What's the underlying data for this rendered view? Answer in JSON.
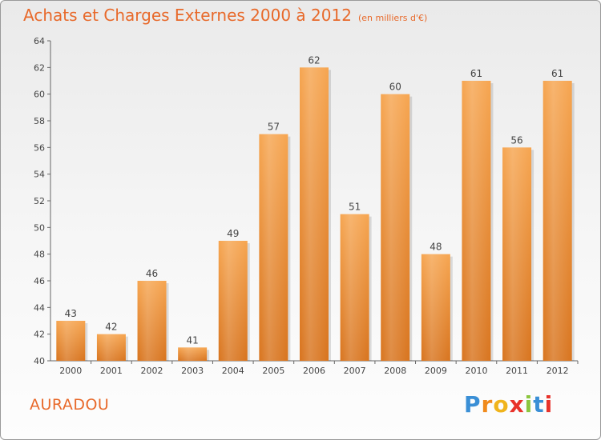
{
  "title": "Achats et Charges Externes 2000 à 2012",
  "unit": "(en milliers d'€)",
  "commune": "AURADOU",
  "logo": {
    "letters": [
      "P",
      "r",
      "o",
      "x",
      "i",
      "t",
      "i"
    ],
    "colors": [
      "#3a8fd6",
      "#f08a1c",
      "#f0b41c",
      "#e8322a",
      "#8cc63f",
      "#3a8fd6",
      "#e8322a"
    ]
  },
  "chart_data": {
    "type": "bar",
    "categories": [
      "2000",
      "2001",
      "2002",
      "2003",
      "2004",
      "2005",
      "2006",
      "2007",
      "2008",
      "2009",
      "2010",
      "2011",
      "2012"
    ],
    "values": [
      43,
      42,
      46,
      41,
      49,
      57,
      62,
      51,
      60,
      48,
      61,
      56,
      61
    ],
    "title": "Achats et Charges Externes 2000 à 2012",
    "ylim": [
      40,
      64
    ],
    "yticks": [
      40,
      42,
      44,
      46,
      48,
      50,
      52,
      54,
      56,
      58,
      60,
      62,
      64
    ],
    "grid": false,
    "bar_color": "#f4a04c",
    "bar_color_dark": "#d8741e"
  }
}
